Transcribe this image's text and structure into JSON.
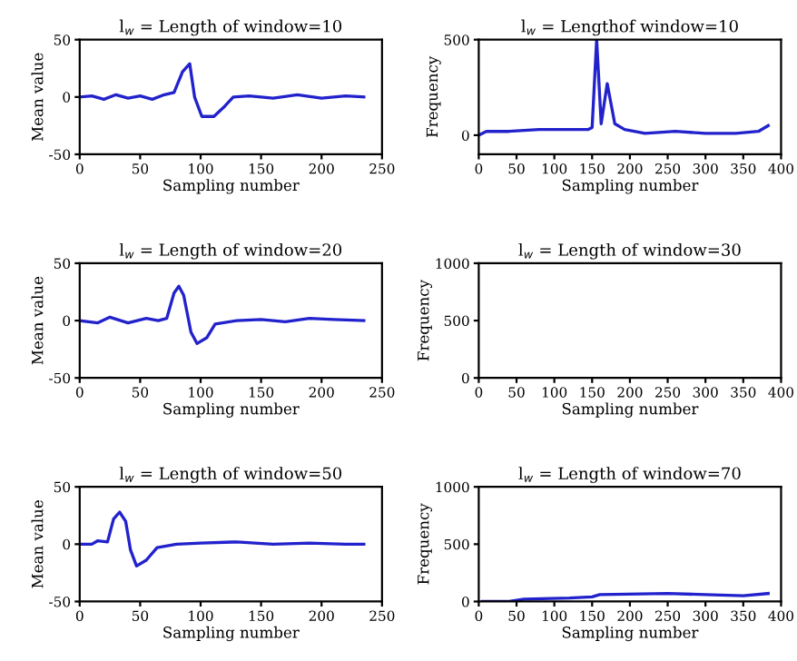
{
  "chart_data": [
    {
      "type": "line",
      "title": "l$_{w}$ = Length of window=10",
      "xlabel": "Sampling number",
      "ylabel": "Mean value",
      "xlim": [
        0,
        250
      ],
      "xticks": [
        0,
        50,
        100,
        150,
        200,
        250
      ],
      "ylim": [
        -50,
        50
      ],
      "yticks": [
        -50,
        0,
        50
      ],
      "grid": false,
      "legend": false,
      "series": [
        {
          "color": "#2222cc",
          "x": [
            0,
            10,
            20,
            30,
            40,
            50,
            60,
            70,
            78,
            85,
            91,
            95,
            101,
            111,
            120,
            127,
            140,
            160,
            180,
            200,
            220,
            235
          ],
          "values": [
            0,
            1,
            -2,
            2,
            -1,
            1,
            -2,
            2,
            4,
            22,
            29,
            0,
            -17,
            -17,
            -8,
            0,
            1,
            -1,
            2,
            -1,
            1,
            0
          ]
        }
      ]
    },
    {
      "type": "line",
      "title": "l$_{w}$ = Lengthof window=10",
      "xlabel": "Sampling number",
      "ylabel": "Frequency",
      "xlim": [
        0,
        400
      ],
      "xticks": [
        0,
        50,
        100,
        150,
        200,
        250,
        300,
        350,
        400
      ],
      "ylim": [
        -100,
        500
      ],
      "yticks": [
        0,
        500
      ],
      "grid": false,
      "legend": false,
      "series": [
        {
          "color": "#2222cc",
          "x": [
            0,
            10,
            40,
            80,
            120,
            145,
            150,
            156,
            162,
            170,
            180,
            193,
            220,
            260,
            300,
            340,
            370,
            383
          ],
          "values": [
            0,
            20,
            20,
            30,
            30,
            30,
            40,
            500,
            60,
            270,
            60,
            30,
            10,
            20,
            10,
            10,
            20,
            50
          ]
        }
      ]
    },
    {
      "type": "line",
      "title": "l$_{w}$ = Length of window=20",
      "xlabel": "Sampling number",
      "ylabel": "Mean value",
      "xlim": [
        0,
        250
      ],
      "xticks": [
        0,
        50,
        100,
        150,
        200,
        250
      ],
      "ylim": [
        -50,
        50
      ],
      "yticks": [
        -50,
        0,
        50
      ],
      "grid": false,
      "legend": false,
      "series": [
        {
          "color": "#2222cc",
          "x": [
            0,
            15,
            25,
            40,
            55,
            65,
            72,
            78,
            82,
            86,
            92,
            97,
            105,
            112,
            130,
            150,
            170,
            190,
            210,
            235
          ],
          "values": [
            0,
            -2,
            3,
            -2,
            2,
            0,
            2,
            24,
            30,
            22,
            -10,
            -20,
            -15,
            -3,
            0,
            1,
            -1,
            2,
            1,
            0
          ]
        }
      ]
    },
    {
      "type": "line",
      "title": "l$_{w}$ = Length of window=30",
      "xlabel": "Sampling number",
      "ylabel": "Frequency",
      "xlim": [
        0,
        400
      ],
      "xticks": [
        0,
        50,
        100,
        150,
        200,
        250,
        300,
        350,
        400
      ],
      "ylim": [
        0,
        1000
      ],
      "yticks": [
        0,
        500,
        1000
      ],
      "grid": false,
      "legend": false
    },
    {
      "type": "line",
      "title": "l$_{w}$ = Length of window=50",
      "xlabel": "Sampling number",
      "ylabel": "Mean value",
      "xlim": [
        0,
        250
      ],
      "xticks": [
        0,
        50,
        100,
        150,
        200,
        250
      ],
      "ylim": [
        -50,
        50
      ],
      "yticks": [
        -50,
        0,
        50
      ],
      "grid": false,
      "legend": false,
      "series": [
        {
          "color": "#2222cc",
          "x": [
            0,
            10,
            15,
            23,
            28,
            33,
            38,
            42,
            47,
            55,
            64,
            80,
            100,
            130,
            160,
            190,
            220,
            235
          ],
          "values": [
            0,
            0,
            3,
            2,
            22,
            28,
            20,
            -5,
            -19,
            -14,
            -3,
            0,
            1,
            2,
            0,
            1,
            0,
            0
          ]
        }
      ]
    },
    {
      "type": "line",
      "title": "l$_{w}$ = Length of window=70",
      "xlabel": "Sampling number",
      "ylabel": "Frequency",
      "xlim": [
        0,
        400
      ],
      "xticks": [
        0,
        50,
        100,
        150,
        200,
        250,
        300,
        350,
        400
      ],
      "ylim": [
        0,
        1000
      ],
      "yticks": [
        0,
        500,
        1000
      ],
      "grid": false,
      "legend": false,
      "series": [
        {
          "color": "#2222cc",
          "x": [
            5,
            40,
            60,
            120,
            150,
            160,
            250,
            300,
            350,
            383
          ],
          "values": [
            0,
            0,
            20,
            30,
            40,
            60,
            70,
            60,
            50,
            70
          ]
        }
      ]
    }
  ]
}
